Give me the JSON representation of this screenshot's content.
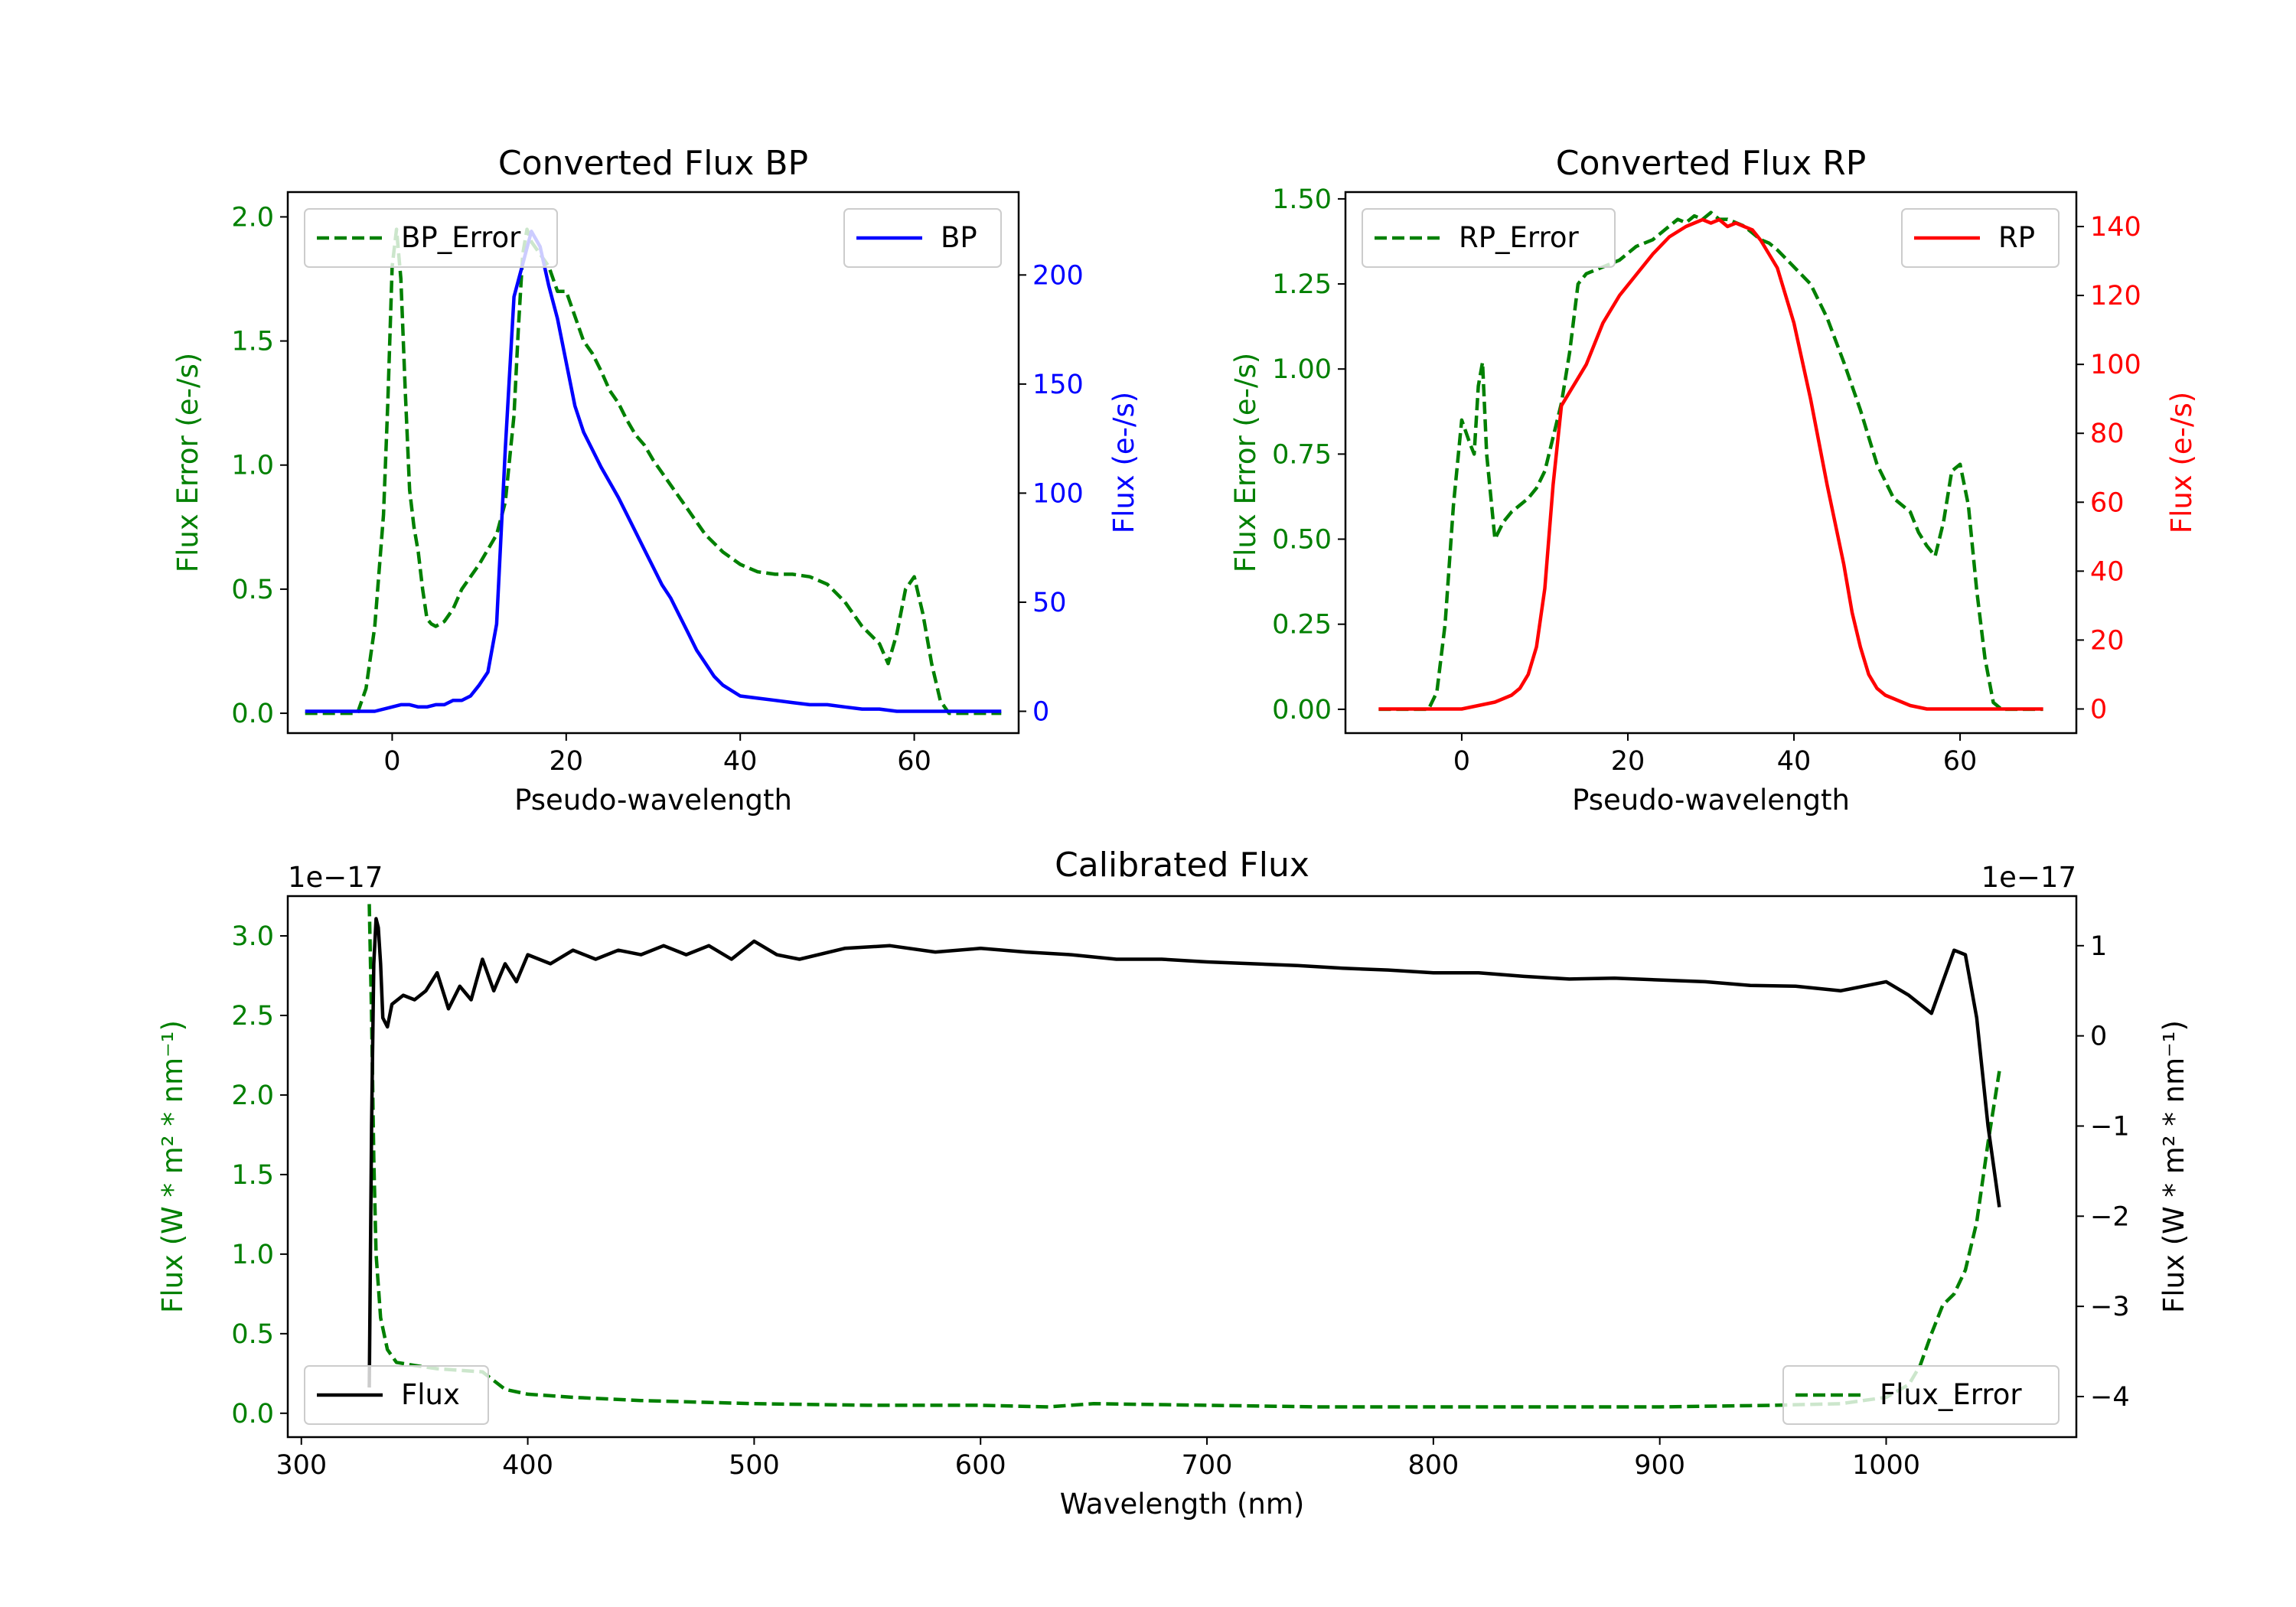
{
  "colors": {
    "green": "#008000",
    "blue": "#0000ff",
    "red": "#ff0000",
    "black": "#000000"
  },
  "chart_data": [
    {
      "id": "bp",
      "type": "line",
      "title": "Converted Flux BP",
      "xlabel": "Pseudo-wavelength",
      "ylabel_left": "Flux Error (e-/s)",
      "ylabel_right": "Flux (e-/s)",
      "xlim": [
        -12,
        72
      ],
      "ylim_left": [
        -0.08,
        2.1
      ],
      "ylim_right": [
        -10,
        238
      ],
      "xticks": [
        0,
        20,
        40,
        60
      ],
      "xtick_labels": [
        "0",
        "20",
        "40",
        "60"
      ],
      "yticks_left": [
        0.0,
        0.5,
        1.0,
        1.5,
        2.0
      ],
      "ytick_labels_left": [
        "0.0",
        "0.5",
        "1.0",
        "1.5",
        "2.0"
      ],
      "yticks_right": [
        0,
        50,
        100,
        150,
        200
      ],
      "ytick_labels_right": [
        "0",
        "50",
        "100",
        "150",
        "200"
      ],
      "legend_left": "BP_Error",
      "legend_right": "BP",
      "series_left": {
        "name": "BP_Error",
        "x": [
          -10,
          -4,
          -3,
          -2,
          -1,
          -0.5,
          0,
          0.5,
          1,
          1.5,
          2,
          2.5,
          3,
          3.5,
          4,
          4.5,
          5,
          6,
          7,
          8,
          10,
          12,
          13,
          14,
          14.5,
          15,
          15.5,
          16,
          17,
          18,
          19,
          20,
          21,
          22,
          23,
          24,
          25,
          26,
          27,
          28,
          29,
          30,
          32,
          34,
          36,
          38,
          40,
          42,
          44,
          46,
          48,
          50,
          52,
          54,
          56,
          57,
          58,
          59,
          60,
          61,
          62,
          63,
          64,
          65,
          70
        ],
        "y": [
          0,
          0,
          0.1,
          0.35,
          0.8,
          1.25,
          1.8,
          1.95,
          1.75,
          1.3,
          0.9,
          0.75,
          0.65,
          0.5,
          0.38,
          0.36,
          0.35,
          0.37,
          0.42,
          0.5,
          0.6,
          0.72,
          0.85,
          1.2,
          1.55,
          1.85,
          1.95,
          1.9,
          1.85,
          1.8,
          1.7,
          1.7,
          1.6,
          1.5,
          1.45,
          1.38,
          1.3,
          1.25,
          1.18,
          1.12,
          1.08,
          1.02,
          0.92,
          0.82,
          0.72,
          0.65,
          0.6,
          0.57,
          0.56,
          0.56,
          0.55,
          0.52,
          0.45,
          0.35,
          0.28,
          0.2,
          0.32,
          0.5,
          0.55,
          0.4,
          0.2,
          0.05,
          0.0,
          0.0,
          0.0
        ]
      },
      "series_right": {
        "name": "BP",
        "x": [
          -10,
          -2,
          0,
          1,
          2,
          3,
          4,
          5,
          6,
          7,
          8,
          9,
          10,
          11,
          12,
          13,
          14,
          15,
          16,
          17,
          18,
          19,
          20,
          21,
          22,
          23,
          24,
          25,
          26,
          27,
          28,
          29,
          30,
          31,
          32,
          33,
          34,
          35,
          36,
          37,
          38,
          40,
          42,
          44,
          46,
          48,
          50,
          52,
          54,
          56,
          58,
          60,
          62,
          64,
          66,
          68,
          70
        ],
        "y": [
          0,
          0,
          2,
          3,
          3,
          2,
          2,
          3,
          3,
          5,
          5,
          7,
          12,
          18,
          40,
          120,
          190,
          205,
          220,
          213,
          195,
          180,
          160,
          140,
          128,
          120,
          112,
          105,
          98,
          90,
          82,
          74,
          66,
          58,
          52,
          44,
          36,
          28,
          22,
          16,
          12,
          7,
          6,
          5,
          4,
          3,
          3,
          2,
          1,
          1,
          0,
          0,
          0,
          0,
          0,
          0,
          0
        ]
      }
    },
    {
      "id": "rp",
      "type": "line",
      "title": "Converted Flux RP",
      "xlabel": "Pseudo-wavelength",
      "ylabel_left": "Flux Error (e-/s)",
      "ylabel_right": "Flux (e-/s)",
      "xlim": [
        -14,
        74
      ],
      "ylim_left": [
        -0.07,
        1.52
      ],
      "ylim_right": [
        -7,
        150
      ],
      "xticks": [
        0,
        20,
        40,
        60
      ],
      "xtick_labels": [
        "0",
        "20",
        "40",
        "60"
      ],
      "yticks_left": [
        0.0,
        0.25,
        0.5,
        0.75,
        1.0,
        1.25,
        1.5
      ],
      "ytick_labels_left": [
        "0.00",
        "0.25",
        "0.50",
        "0.75",
        "1.00",
        "1.25",
        "1.50"
      ],
      "yticks_right": [
        0,
        20,
        40,
        60,
        80,
        100,
        120,
        140
      ],
      "ytick_labels_right": [
        "0",
        "20",
        "40",
        "60",
        "80",
        "100",
        "120",
        "140"
      ],
      "legend_left": "RP_Error",
      "legend_right": "RP",
      "series_left": {
        "name": "RP_Error",
        "x": [
          -10,
          -4,
          -3,
          -2,
          -1,
          0,
          1,
          1.5,
          2,
          2.5,
          3,
          4,
          5,
          6,
          7,
          8,
          9,
          10,
          12,
          13,
          14,
          15,
          17,
          19,
          21,
          23,
          25,
          26,
          27,
          28,
          29,
          30,
          31,
          32,
          33,
          34,
          35,
          36,
          37,
          38,
          40,
          42,
          44,
          46,
          48,
          50,
          52,
          54,
          55,
          56,
          57,
          58,
          59,
          60,
          61,
          62,
          63,
          64,
          65,
          70
        ],
        "y": [
          0,
          0,
          0.05,
          0.25,
          0.6,
          0.85,
          0.78,
          0.75,
          0.95,
          1.02,
          0.75,
          0.5,
          0.55,
          0.58,
          0.6,
          0.62,
          0.65,
          0.7,
          0.9,
          1.05,
          1.25,
          1.28,
          1.3,
          1.32,
          1.36,
          1.38,
          1.42,
          1.44,
          1.43,
          1.45,
          1.44,
          1.46,
          1.44,
          1.44,
          1.43,
          1.42,
          1.4,
          1.38,
          1.37,
          1.35,
          1.3,
          1.25,
          1.15,
          1.02,
          0.88,
          0.72,
          0.62,
          0.58,
          0.52,
          0.48,
          0.45,
          0.55,
          0.7,
          0.72,
          0.6,
          0.35,
          0.15,
          0.02,
          0,
          0
        ]
      },
      "series_right": {
        "name": "RP",
        "x": [
          -10,
          -4,
          0,
          2,
          4,
          5,
          6,
          7,
          8,
          9,
          10,
          11,
          12,
          13,
          14,
          15,
          17,
          19,
          21,
          23,
          25,
          27,
          28,
          29,
          30,
          31,
          32,
          33,
          34,
          35,
          36,
          37,
          38,
          40,
          42,
          44,
          46,
          47,
          48,
          49,
          50,
          51,
          52,
          53,
          54,
          56,
          58,
          60,
          62,
          64,
          66,
          70
        ],
        "y": [
          0,
          0,
          0,
          1,
          2,
          3,
          4,
          6,
          10,
          18,
          35,
          65,
          88,
          92,
          96,
          100,
          112,
          120,
          126,
          132,
          137,
          140,
          141,
          142,
          141,
          142,
          140,
          141,
          140,
          139,
          136,
          132,
          128,
          112,
          90,
          65,
          42,
          28,
          18,
          10,
          6,
          4,
          3,
          2,
          1,
          0,
          0,
          0,
          0,
          0,
          0,
          0
        ]
      }
    },
    {
      "id": "cal",
      "type": "line",
      "title": "Calibrated Flux",
      "xlabel": "Wavelength (nm)",
      "ylabel_left": "Flux (W * m² * nm⁻¹)",
      "ylabel_right": "Flux (W * m² * nm⁻¹)",
      "offset_left": "1e−17",
      "offset_right": "1e−17",
      "xlim": [
        294,
        1084
      ],
      "ylim_left": [
        -0.15,
        3.25
      ],
      "ylim_right": [
        -4.45,
        1.55
      ],
      "xticks": [
        300,
        400,
        500,
        600,
        700,
        800,
        900,
        1000
      ],
      "xtick_labels": [
        "300",
        "400",
        "500",
        "600",
        "700",
        "800",
        "900",
        "1000"
      ],
      "yticks_left": [
        0.0,
        0.5,
        1.0,
        1.5,
        2.0,
        2.5,
        3.0
      ],
      "ytick_labels_left": [
        "0.0",
        "0.5",
        "1.0",
        "1.5",
        "2.0",
        "2.5",
        "3.0"
      ],
      "yticks_right": [
        -4,
        -3,
        -2,
        -1,
        0,
        1
      ],
      "ytick_labels_right": [
        "−4",
        "−3",
        "−2",
        "−1",
        "0",
        "1"
      ],
      "legend_left": "Flux",
      "legend_right": "Flux_Error",
      "series_left": {
        "name": "Flux_Error",
        "x": [
          330,
          331,
          332,
          333,
          335,
          338,
          342,
          350,
          360,
          370,
          380,
          390,
          400,
          420,
          450,
          500,
          550,
          600,
          630,
          650,
          700,
          750,
          800,
          850,
          900,
          950,
          980,
          1000,
          1010,
          1015,
          1020,
          1025,
          1030,
          1035,
          1040,
          1045,
          1050
        ],
        "y": [
          3.2,
          2.5,
          1.6,
          1.0,
          0.6,
          0.4,
          0.32,
          0.3,
          0.28,
          0.27,
          0.26,
          0.15,
          0.12,
          0.1,
          0.08,
          0.06,
          0.05,
          0.05,
          0.04,
          0.06,
          0.05,
          0.04,
          0.04,
          0.04,
          0.04,
          0.05,
          0.06,
          0.1,
          0.18,
          0.3,
          0.5,
          0.68,
          0.75,
          0.9,
          1.2,
          1.7,
          2.15
        ]
      },
      "series_right": {
        "name": "Flux",
        "x": [
          330,
          331,
          332,
          333,
          334,
          335,
          336,
          338,
          340,
          345,
          350,
          355,
          360,
          365,
          370,
          375,
          380,
          385,
          390,
          395,
          400,
          410,
          420,
          430,
          440,
          450,
          460,
          470,
          480,
          490,
          500,
          510,
          520,
          540,
          560,
          580,
          600,
          620,
          640,
          660,
          680,
          700,
          720,
          740,
          760,
          780,
          800,
          820,
          840,
          860,
          880,
          900,
          920,
          940,
          960,
          980,
          1000,
          1010,
          1020,
          1030,
          1035,
          1040,
          1045,
          1050
        ],
        "y": [
          -3.9,
          -1.0,
          0.8,
          1.3,
          1.2,
          0.8,
          0.2,
          0.1,
          0.35,
          0.45,
          0.4,
          0.5,
          0.7,
          0.3,
          0.55,
          0.4,
          0.85,
          0.5,
          0.8,
          0.6,
          0.9,
          0.8,
          0.95,
          0.85,
          0.95,
          0.9,
          1.0,
          0.9,
          1.0,
          0.85,
          1.05,
          0.9,
          0.85,
          0.97,
          1.0,
          0.93,
          0.97,
          0.93,
          0.9,
          0.85,
          0.85,
          0.82,
          0.8,
          0.78,
          0.75,
          0.73,
          0.7,
          0.7,
          0.66,
          0.63,
          0.64,
          0.62,
          0.6,
          0.56,
          0.55,
          0.5,
          0.6,
          0.45,
          0.25,
          0.95,
          0.9,
          0.2,
          -1.0,
          -1.9
        ]
      }
    }
  ]
}
